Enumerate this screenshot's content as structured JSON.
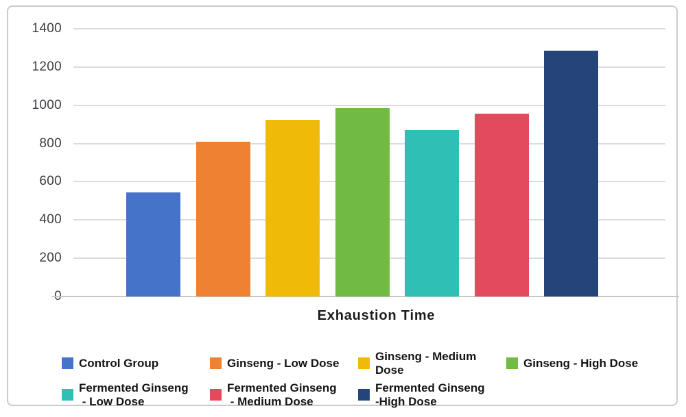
{
  "chart_data": {
    "type": "bar",
    "title": "",
    "xlabel": "Exhaustion Time",
    "ylabel": "",
    "ylim": [
      0,
      1400
    ],
    "yticks": [
      0,
      200,
      400,
      600,
      800,
      1000,
      1200,
      1400
    ],
    "grid": true,
    "legend_position": "bottom",
    "categories": [
      "Control Group",
      "Ginseng - Low Dose",
      "Ginseng - Medium Dose",
      "Ginseng - High Dose",
      "Fermented Ginseng - Low Dose",
      "Fermented Ginseng - Medium Dose",
      "Fermented Ginseng -High Dose"
    ],
    "values": [
      545,
      810,
      925,
      985,
      870,
      955,
      1285
    ],
    "colors": [
      "#4573CA",
      "#EF8133",
      "#EFBA08",
      "#71BB44",
      "#2FBFB4",
      "#E44A5E",
      "#254579"
    ],
    "legend_lines": [
      [
        "Control Group"
      ],
      [
        "Ginseng - Low Dose"
      ],
      [
        "Ginseng - Medium",
        "Dose"
      ],
      [
        "Ginseng - High Dose"
      ],
      [
        "Fermented Ginseng",
        " - Low Dose"
      ],
      [
        "Fermented Ginseng",
        " - Medium Dose"
      ],
      [
        "Fermented Ginseng",
        "-High Dose"
      ]
    ]
  },
  "frame": {
    "background": "#ffffff",
    "border_color": "#cbcbcb",
    "gridline_color": "#dcdcdc",
    "axis_line_color": "#c7c7c7"
  }
}
